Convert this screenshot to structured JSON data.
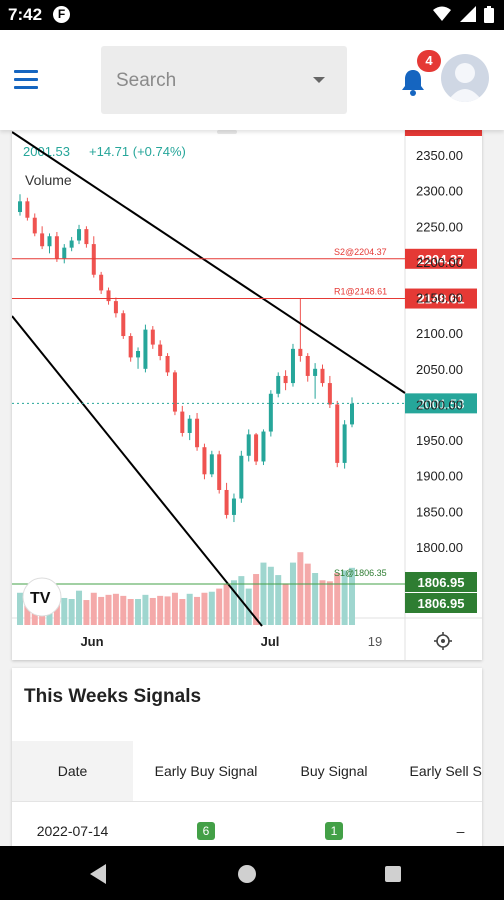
{
  "status": {
    "time": "7:42",
    "app_icon": "F"
  },
  "header": {
    "search_placeholder": "Search",
    "notification_count": "4"
  },
  "chart": {
    "price": "2001.53",
    "change": "+14.71 (+0.74%)",
    "volume_label": "Volume",
    "axis_labels": [
      "2350.00",
      "2300.00",
      "2250.00",
      "2200.00",
      "2150.00",
      "2100.00",
      "2050.00",
      "2000.00",
      "1950.00",
      "1900.00",
      "1850.00",
      "1800.00"
    ],
    "x_labels": [
      "Jun",
      "Jul",
      "19"
    ],
    "level_tags": {
      "s2": "2204.37",
      "r1": "2148.61",
      "current": "2001.53",
      "low1": "1806.95",
      "low2": "1806.95"
    },
    "line_labels": {
      "s2": "S2@2204.37",
      "r1": "R1@2148.61",
      "s1": "S1@1806.35"
    },
    "colors": {
      "up": "#26a69a",
      "down": "#ef5350",
      "level": "#e53935",
      "current": "#26a69a",
      "low": "#2e7d32"
    }
  },
  "chart_data": {
    "type": "candlestick",
    "title": "",
    "x": [
      "Jun",
      "Jul",
      "19"
    ],
    "ylim": [
      1785,
      2370
    ],
    "price_levels": [
      {
        "name": "S2",
        "value": 2204.37
      },
      {
        "name": "R1",
        "value": 2148.61
      },
      {
        "name": "S1",
        "value": 1806.35
      }
    ],
    "last_price": 2001.53,
    "change": 14.71,
    "change_pct": 0.74,
    "candles": [
      [
        2270,
        2295,
        2265,
        2285
      ],
      [
        2285,
        2290,
        2258,
        2262
      ],
      [
        2262,
        2268,
        2236,
        2240
      ],
      [
        2240,
        2250,
        2218,
        2222
      ],
      [
        2222,
        2240,
        2212,
        2236
      ],
      [
        2236,
        2242,
        2200,
        2205
      ],
      [
        2205,
        2225,
        2198,
        2220
      ],
      [
        2220,
        2235,
        2215,
        2230
      ],
      [
        2230,
        2252,
        2225,
        2246
      ],
      [
        2246,
        2250,
        2220,
        2225
      ],
      [
        2225,
        2236,
        2178,
        2182
      ],
      [
        2182,
        2186,
        2155,
        2160
      ],
      [
        2160,
        2164,
        2140,
        2145
      ],
      [
        2145,
        2150,
        2122,
        2128
      ],
      [
        2128,
        2132,
        2092,
        2096
      ],
      [
        2096,
        2100,
        2060,
        2066
      ],
      [
        2066,
        2080,
        2050,
        2075
      ],
      [
        2050,
        2112,
        2045,
        2105
      ],
      [
        2105,
        2110,
        2078,
        2084
      ],
      [
        2084,
        2090,
        2062,
        2068
      ],
      [
        2068,
        2072,
        2040,
        2045
      ],
      [
        2045,
        2048,
        1985,
        1990
      ],
      [
        1990,
        1998,
        1955,
        1960
      ],
      [
        1960,
        1985,
        1950,
        1980
      ],
      [
        1980,
        1988,
        1935,
        1940
      ],
      [
        1940,
        1945,
        1895,
        1902
      ],
      [
        1902,
        1935,
        1898,
        1930
      ],
      [
        1930,
        1935,
        1875,
        1880
      ],
      [
        1880,
        1890,
        1840,
        1845
      ],
      [
        1845,
        1875,
        1835,
        1868
      ],
      [
        1868,
        1935,
        1862,
        1928
      ],
      [
        1928,
        1965,
        1920,
        1958
      ],
      [
        1958,
        1960,
        1915,
        1920
      ],
      [
        1920,
        1965,
        1915,
        1962
      ],
      [
        1962,
        2020,
        1955,
        2015
      ],
      [
        2015,
        2045,
        2010,
        2040
      ],
      [
        2040,
        2048,
        2020,
        2030
      ],
      [
        2030,
        2085,
        2025,
        2078
      ],
      [
        2078,
        2148,
        2060,
        2068
      ],
      [
        2068,
        2072,
        2032,
        2040
      ],
      [
        2040,
        2058,
        2008,
        2050
      ],
      [
        2050,
        2056,
        2025,
        2030
      ],
      [
        2030,
        2040,
        1995,
        2000
      ],
      [
        2000,
        2005,
        1912,
        1918
      ],
      [
        1918,
        1978,
        1910,
        1972
      ],
      [
        1972,
        2010,
        1968,
        2001
      ]
    ],
    "volume_relative": [
      0.62,
      0.55,
      0.52,
      0.56,
      0.6,
      0.58,
      0.52,
      0.5,
      0.66,
      0.48,
      0.62,
      0.54,
      0.58,
      0.6,
      0.56,
      0.5,
      0.5,
      0.58,
      0.52,
      0.56,
      0.55,
      0.62,
      0.5,
      0.6,
      0.54,
      0.62,
      0.64,
      0.7,
      0.78,
      0.86,
      0.94,
      0.7,
      0.98,
      1.2,
      1.12,
      0.96,
      0.8,
      1.2,
      1.4,
      1.18,
      1.0,
      0.86,
      0.84,
      1.0,
      1.05,
      1.1
    ]
  },
  "signals": {
    "title": "This Weeks Signals",
    "columns": [
      "Date",
      "Early Buy Signal",
      "Buy Signal",
      "Early Sell Signal"
    ],
    "rows": [
      {
        "date": "2022-07-14",
        "early_buy": "6",
        "buy": "1",
        "early_sell": "–"
      }
    ]
  }
}
